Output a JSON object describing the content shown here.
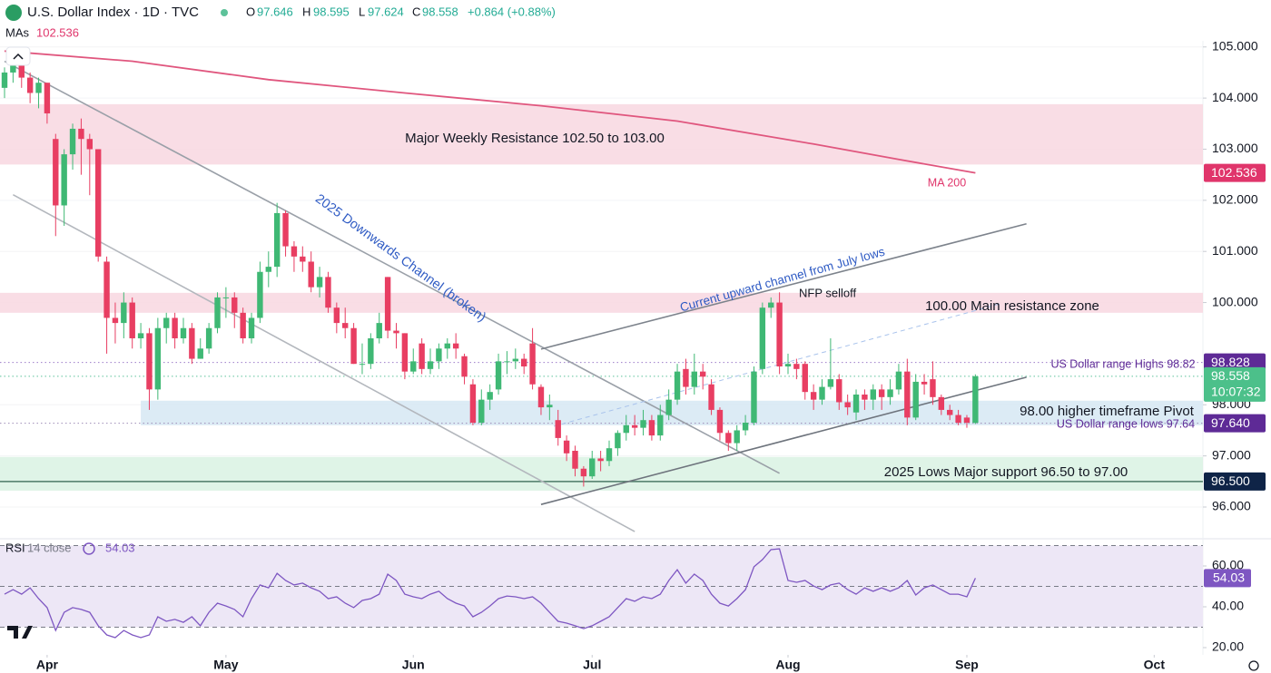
{
  "header": {
    "symbol": "U.S. Dollar Index · 1D · TVC",
    "open_label": "O",
    "open": "97.646",
    "high_label": "H",
    "high": "98.595",
    "low_label": "L",
    "low": "97.624",
    "close_label": "C",
    "close": "98.558",
    "change": "+0.864 (+0.88%)",
    "mas_label": "MAs",
    "mas_value": "102.536"
  },
  "chart_data": [
    {
      "type": "candlestick",
      "categories": [
        null,
        null,
        null,
        null,
        null,
        null,
        null,
        null,
        null,
        null,
        null,
        null,
        null,
        null,
        null,
        null,
        null,
        null,
        null,
        null,
        null,
        null,
        null,
        null,
        null,
        null,
        null,
        null,
        null,
        null,
        null,
        null,
        null,
        null,
        null,
        null,
        null,
        null,
        null,
        null,
        null,
        null,
        null,
        null,
        null,
        null,
        null,
        null,
        null,
        null,
        null,
        null,
        null,
        null,
        null,
        null,
        null,
        null,
        null,
        null,
        null,
        null,
        null,
        null,
        null,
        null,
        null,
        null,
        null,
        null,
        null,
        null,
        null,
        null,
        null,
        null,
        null,
        null,
        null,
        null,
        null,
        null,
        null,
        null,
        null,
        null,
        null,
        null,
        null,
        null,
        null,
        null,
        null,
        null,
        null,
        null,
        null,
        null,
        null,
        null,
        null,
        null,
        null,
        null,
        null,
        null,
        null,
        null,
        null,
        null,
        null,
        null,
        null,
        null,
        null
      ],
      "open": [
        104.2,
        104.5,
        104.8,
        104.4,
        104.1,
        104.3,
        103.2,
        101.9,
        102.9,
        103.4,
        103.2,
        103.0,
        100.8,
        99.7,
        99.6,
        100.0,
        99.3,
        99.4,
        98.3,
        99.5,
        99.7,
        99.3,
        99.5,
        98.9,
        99.1,
        99.5,
        100.1,
        100.1,
        99.8,
        99.3,
        99.7,
        100.6,
        100.7,
        101.75,
        101.1,
        100.9,
        100.8,
        100.3,
        100.5,
        99.9,
        99.6,
        99.5,
        98.8,
        98.8,
        99.3,
        100.5,
        99.45,
        99.4,
        98.65,
        99.2,
        98.7,
        98.85,
        99.1,
        99.2,
        98.95,
        98.4,
        97.65,
        98.1,
        98.3,
        98.85,
        98.85,
        98.9,
        99.2,
        98.35,
        97.95,
        97.7,
        97.3,
        97.1,
        96.75,
        96.6,
        96.95,
        96.9,
        97.15,
        97.45,
        97.6,
        97.55,
        97.7,
        97.4,
        97.8,
        98.1,
        98.7,
        98.35,
        98.65,
        98.4,
        97.9,
        97.45,
        97.25,
        97.5,
        97.65,
        98.7,
        99.9,
        100.0,
        98.75,
        98.8,
        98.8,
        98.25,
        98.1,
        98.35,
        98.5,
        98.05,
        97.85,
        98.2,
        98.1,
        98.3,
        98.15,
        98.3,
        98.65,
        97.75,
        98.45,
        98.5,
        98.15,
        97.9,
        97.8,
        97.75,
        97.646
      ],
      "high": [
        104.6,
        104.95,
        104.9,
        104.5,
        104.4,
        104.3,
        103.3,
        103.0,
        103.5,
        103.6,
        103.3,
        103.0,
        100.9,
        100.0,
        100.2,
        100.1,
        99.6,
        99.5,
        99.7,
        99.8,
        99.8,
        99.7,
        99.6,
        99.3,
        99.6,
        100.2,
        100.3,
        100.2,
        99.9,
        99.8,
        100.8,
        101.0,
        101.95,
        101.8,
        101.2,
        101.1,
        101.0,
        100.7,
        100.6,
        100.0,
        99.9,
        99.6,
        99.2,
        99.4,
        99.8,
        100.5,
        99.6,
        99.4,
        99.1,
        99.3,
        99.1,
        99.2,
        99.3,
        99.4,
        99.0,
        98.5,
        98.3,
        98.4,
        99.0,
        99.05,
        99.1,
        99.0,
        99.5,
        98.4,
        98.2,
        97.9,
        97.4,
        97.2,
        96.8,
        97.1,
        97.1,
        97.3,
        97.5,
        97.8,
        97.8,
        97.9,
        97.8,
        98.0,
        98.3,
        98.8,
        98.9,
        99.0,
        98.8,
        98.5,
        97.95,
        97.5,
        97.6,
        97.8,
        98.75,
        100.0,
        100.1,
        100.2,
        99.0,
        98.9,
        98.85,
        98.4,
        98.5,
        99.3,
        98.6,
        98.2,
        98.3,
        98.3,
        98.4,
        98.4,
        98.5,
        98.8,
        98.9,
        98.6,
        98.6,
        98.85,
        98.2,
        98.0,
        97.9,
        97.8,
        98.595
      ],
      "low": [
        104.0,
        104.3,
        104.2,
        103.9,
        103.8,
        103.5,
        101.3,
        101.5,
        102.6,
        102.5,
        102.1,
        100.8,
        99.0,
        99.2,
        99.3,
        99.1,
        99.1,
        97.9,
        98.1,
        99.2,
        99.1,
        99.2,
        98.8,
        98.9,
        99.0,
        99.4,
        99.7,
        99.5,
        99.2,
        99.2,
        99.6,
        100.3,
        100.5,
        100.9,
        100.6,
        100.6,
        100.2,
        100.1,
        99.8,
        99.4,
        99.3,
        98.8,
        98.6,
        98.7,
        99.2,
        99.3,
        99.1,
        98.5,
        98.6,
        98.6,
        98.6,
        98.7,
        98.9,
        98.9,
        98.4,
        97.6,
        97.6,
        97.9,
        98.2,
        98.6,
        98.7,
        98.6,
        98.3,
        97.8,
        97.7,
        97.2,
        96.9,
        96.6,
        96.4,
        96.55,
        96.7,
        96.8,
        97.0,
        97.3,
        97.4,
        97.4,
        97.3,
        97.3,
        97.7,
        98.0,
        98.2,
        98.2,
        98.3,
        97.8,
        97.3,
        97.1,
        97.1,
        97.4,
        97.6,
        98.6,
        99.7,
        98.6,
        98.6,
        98.5,
        98.1,
        97.9,
        98.0,
        98.3,
        97.9,
        97.8,
        97.7,
        97.9,
        97.9,
        97.9,
        98.0,
        98.2,
        97.6,
        97.7,
        98.2,
        98.0,
        97.8,
        97.7,
        97.6,
        97.55,
        97.624
      ],
      "close": [
        104.5,
        104.8,
        104.4,
        104.1,
        104.3,
        103.7,
        101.9,
        102.9,
        103.4,
        103.2,
        103.0,
        100.9,
        99.7,
        99.6,
        100.0,
        99.3,
        99.4,
        98.3,
        99.5,
        99.7,
        99.3,
        99.5,
        98.9,
        99.1,
        99.5,
        100.1,
        100.1,
        99.8,
        99.3,
        99.7,
        100.6,
        100.7,
        101.75,
        101.1,
        100.9,
        100.8,
        100.3,
        100.5,
        99.9,
        99.6,
        99.5,
        98.8,
        98.8,
        99.3,
        99.6,
        99.45,
        99.4,
        98.65,
        98.85,
        98.7,
        98.85,
        99.1,
        99.2,
        99.1,
        98.55,
        97.65,
        98.1,
        98.25,
        98.85,
        98.85,
        98.9,
        98.75,
        98.4,
        97.95,
        98.0,
        97.35,
        97.05,
        96.75,
        96.6,
        96.95,
        96.9,
        97.15,
        97.45,
        97.6,
        97.55,
        97.7,
        97.4,
        97.8,
        98.1,
        98.65,
        98.35,
        98.65,
        98.55,
        97.9,
        97.45,
        97.25,
        97.5,
        97.65,
        98.65,
        99.9,
        100.0,
        98.75,
        98.8,
        98.7,
        98.25,
        98.1,
        98.35,
        98.5,
        98.05,
        97.95,
        98.2,
        98.1,
        98.3,
        98.15,
        98.3,
        98.65,
        97.75,
        98.45,
        98.4,
        98.15,
        97.9,
        97.8,
        97.65,
        97.65,
        98.558
      ],
      "up_color": "#3fb874",
      "down_color": "#e83e62",
      "xlim": [
        -0.533,
        140.72
      ],
      "xticks": [
        {
          "value": 5,
          "label": "Apr"
        },
        {
          "value": 26,
          "label": "May"
        },
        {
          "value": 48,
          "label": "Jun"
        },
        {
          "value": 69,
          "label": "Jul"
        },
        {
          "value": 92,
          "label": "Aug"
        },
        {
          "value": 113,
          "label": "Sep"
        },
        {
          "value": 135,
          "label": "Oct"
        }
      ],
      "ylim": [
        95.45,
        105.12
      ],
      "yticks": [
        {
          "value": 105,
          "label": "105.000"
        },
        {
          "value": 104,
          "label": "104.000"
        },
        {
          "value": 103,
          "label": "103.000"
        },
        {
          "value": 102,
          "label": "102.000"
        },
        {
          "value": 101,
          "label": "101.000"
        },
        {
          "value": 100,
          "label": "100.000"
        },
        {
          "value": 98,
          "label": "98.000"
        },
        {
          "value": 97,
          "label": "97.000"
        },
        {
          "value": 96,
          "label": "96.000"
        }
      ],
      "grid": true,
      "ma": {
        "name": "MA 200",
        "color": "#e0567e",
        "x": [
          0,
          15,
          31,
          47,
          63,
          79,
          95,
          105,
          114
        ],
        "values": [
          104.92,
          104.72,
          104.36,
          104.1,
          103.85,
          103.55,
          103.1,
          102.8,
          102.536
        ]
      },
      "zones": [
        {
          "from": 102.7,
          "to": 103.88,
          "color": "#f8d7e0"
        },
        {
          "from": 99.8,
          "to": 100.19,
          "color": "#f8d7e0"
        },
        {
          "from": 97.6,
          "to": 98.08,
          "start": 16,
          "color": "#d6e8f3"
        },
        {
          "from": 96.32,
          "to": 96.98,
          "color": "#d9f2e3"
        }
      ],
      "levels": [
        {
          "value": 98.828,
          "color": "#9c7cc9",
          "style": "dotted"
        },
        {
          "value": 98.558,
          "color": "#5cc29a",
          "style": "dotted"
        },
        {
          "value": 97.64,
          "color": "#9e8db8",
          "style": "dotted"
        },
        {
          "value": 96.5,
          "color": "#4c7a67",
          "style": "solid"
        }
      ],
      "trend_lines": [
        {
          "x": [
            0,
            91
          ],
          "y": [
            104.72,
            96.66
          ],
          "color": "#9aa0a8",
          "style": "solid"
        },
        {
          "x": [
            1,
            74
          ],
          "y": [
            102.11,
            95.52
          ],
          "color": "#b3b7bd",
          "style": "solid"
        },
        {
          "x": [
            63,
            120
          ],
          "y": [
            99.09,
            101.54
          ],
          "color": "#7d838c",
          "style": "solid"
        },
        {
          "x": [
            63,
            120
          ],
          "y": [
            96.05,
            98.54
          ],
          "color": "#6e747d",
          "style": "solid"
        },
        {
          "x": [
            64.5,
            117
          ],
          "y": [
            97.58,
            99.98
          ],
          "color": "#a9c3ec",
          "style": "dashed"
        }
      ],
      "price_labels": [
        {
          "value": 102.536,
          "color": "#e0356b"
        },
        {
          "value": 98.828,
          "color": "#5e2a96"
        },
        {
          "value": 98.558,
          "color": "#4cc08a",
          "countdown": "10:07:32"
        },
        {
          "value": {
            "value": 97.64,
            "label": "97.640"
          },
          "color": "#5e2a96"
        },
        {
          "value": {
            "value": 96.5,
            "label": "96.500"
          },
          "color": "#0f2447"
        }
      ],
      "annotations": [
        {
          "text": "Major Weekly Resistance 102.50 to 103.00",
          "color": "#131722"
        },
        {
          "text": "2025 Downwards Channel (broken)",
          "color": "#2f5bc4"
        },
        {
          "text": "Current upward channel from July lows",
          "color": "#2f5bc4"
        },
        {
          "text": "NFP selloff",
          "color": "#131722"
        },
        {
          "text": "100.00 Main resistance zone",
          "color": "#131722"
        },
        {
          "text": "US Dollar range Highs 98.82",
          "color": "#5e2a96"
        },
        {
          "text": "98.00 higher timeframe Pivot",
          "color": "#131722"
        },
        {
          "text": "US Dollar range lows 97.64",
          "color": "#5e2a96"
        },
        {
          "text": "2025 Lows Major support 96.50 to 97.00",
          "color": "#131722"
        },
        {
          "text": "MA 200",
          "color": "#e0356b"
        }
      ]
    },
    {
      "type": "line",
      "title": "RSI",
      "subtitle": "14 close",
      "series": [
        {
          "name": "RSI",
          "color": "#7e57c2",
          "values": [
            46.2,
            48.4,
            46.2,
            49.3,
            44.0,
            39.6,
            28.4,
            37.3,
            39.6,
            38.7,
            37.3,
            30.7,
            26.2,
            24.9,
            28.4,
            26.2,
            24.9,
            26.2,
            35.1,
            32.9,
            33.8,
            32.4,
            35.1,
            30.7,
            37.3,
            41.8,
            40.4,
            38.7,
            35.1,
            44.0,
            50.7,
            49.3,
            56.4,
            52.9,
            50.7,
            51.6,
            49.3,
            47.6,
            44.0,
            44.9,
            41.8,
            39.6,
            43.1,
            44.0,
            46.2,
            56.0,
            52.9,
            46.2,
            44.9,
            44.0,
            46.2,
            47.6,
            44.0,
            41.8,
            40.4,
            35.1,
            37.3,
            40.4,
            44.0,
            45.3,
            44.9,
            44.0,
            44.9,
            41.8,
            37.3,
            32.9,
            32.0,
            30.7,
            29.3,
            30.7,
            32.9,
            35.1,
            39.6,
            44.0,
            42.7,
            44.9,
            44.0,
            46.2,
            52.9,
            58.2,
            51.6,
            56.0,
            52.9,
            46.2,
            41.8,
            40.4,
            44.0,
            48.4,
            59.6,
            63.1,
            68.0,
            68.4,
            52.9,
            52.0,
            52.9,
            50.2,
            48.4,
            50.7,
            51.6,
            48.4,
            46.2,
            49.3,
            47.6,
            49.3,
            47.6,
            49.3,
            52.9,
            45.8,
            49.3,
            50.7,
            48.4,
            46.2,
            46.2,
            44.9,
            54.03
          ]
        }
      ],
      "last_value": 54.03,
      "ylim": [
        17.33,
        71.56
      ],
      "yticks": [
        {
          "value": 60,
          "label": "60.00"
        },
        {
          "value": 40,
          "label": "40.00"
        },
        {
          "value": 20,
          "label": "20.00"
        }
      ],
      "levels": [
        70,
        50,
        30
      ],
      "band": [
        30,
        70
      ],
      "band_color": "#ede7f6"
    }
  ]
}
